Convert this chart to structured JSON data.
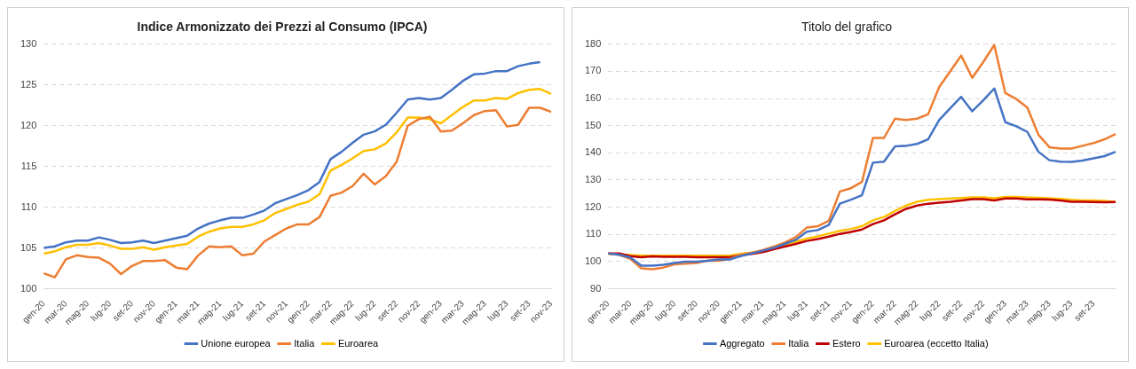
{
  "chart_data": [
    {
      "type": "line",
      "title": "Indice Armonizzato dei Prezzi al Consumo (IPCA)",
      "categories": [
        "gen-20",
        null,
        "mar-20",
        null,
        "mag-20",
        null,
        "lug-20",
        null,
        "set-20",
        null,
        "nov-20",
        null,
        "gen-21",
        null,
        "mar-21",
        null,
        "mag-21",
        null,
        "lug-21",
        null,
        "set-21",
        null,
        "nov-21",
        null,
        "gen-22",
        null,
        "mar-22",
        null,
        "mag-22",
        null,
        "lug-22",
        null,
        "set-22",
        null,
        "nov-22",
        null,
        "gen-23",
        null,
        "mar-23",
        null,
        "mag-23",
        null,
        "lug-23",
        null,
        "set-23",
        null,
        "nov-23"
      ],
      "series": [
        {
          "name": "Unione europea",
          "color": "#4472c4",
          "values": [
            105.0,
            105.2,
            105.7,
            105.9,
            105.9,
            106.3,
            106.0,
            105.6,
            105.7,
            105.9,
            105.6,
            105.9,
            106.2,
            106.5,
            107.4,
            108.0,
            108.4,
            108.7,
            108.7,
            109.1,
            109.6,
            110.5,
            111.0,
            111.5,
            112.1,
            113.1,
            115.9,
            116.8,
            117.9,
            118.9,
            119.3,
            120.1,
            121.6,
            123.2,
            123.4,
            123.2,
            123.4,
            124.4,
            125.5,
            126.3,
            126.4,
            126.7,
            126.7,
            127.3,
            127.6,
            127.8,
            null
          ]
        },
        {
          "name": "Italia",
          "color": "#ed7d31",
          "values": [
            101.9,
            101.4,
            103.6,
            104.1,
            103.9,
            103.8,
            103.1,
            101.8,
            102.8,
            103.4,
            103.4,
            103.5,
            102.6,
            102.4,
            104.1,
            105.2,
            105.1,
            105.2,
            104.1,
            104.3,
            105.8,
            106.6,
            107.4,
            107.9,
            107.9,
            108.8,
            111.4,
            111.8,
            112.6,
            114.1,
            112.8,
            113.8,
            115.6,
            120.0,
            120.8,
            121.1,
            119.3,
            119.4,
            120.3,
            121.3,
            121.8,
            121.9,
            119.9,
            120.1,
            122.2,
            122.2,
            121.7
          ]
        },
        {
          "name": "Euroarea",
          "color": "#ffc000",
          "values": [
            104.3,
            104.6,
            105.1,
            105.4,
            105.4,
            105.6,
            105.3,
            104.9,
            104.9,
            105.1,
            104.8,
            105.1,
            105.3,
            105.5,
            106.4,
            107.0,
            107.4,
            107.6,
            107.6,
            107.9,
            108.4,
            109.3,
            109.8,
            110.3,
            110.7,
            111.6,
            114.5,
            115.2,
            116.0,
            116.9,
            117.1,
            117.8,
            119.2,
            121.0,
            121.0,
            120.8,
            120.3,
            121.3,
            122.3,
            123.1,
            123.1,
            123.4,
            123.3,
            124.0,
            124.4,
            124.5,
            123.9
          ]
        }
      ],
      "ylim": [
        100,
        130
      ],
      "yticks": [
        100,
        105,
        110,
        115,
        120,
        125,
        130
      ],
      "grid": "y",
      "legend": "bottom"
    },
    {
      "type": "line",
      "title": "Titolo del grafico",
      "categories": [
        "gen-20",
        null,
        "mar-20",
        null,
        "mag-20",
        null,
        "lug-20",
        null,
        "set-20",
        null,
        "nov-20",
        null,
        "gen-21",
        null,
        "mar-21",
        null,
        "mag-21",
        null,
        "lug-21",
        null,
        "set-21",
        null,
        "nov-21",
        null,
        "gen-22",
        null,
        "mar-22",
        null,
        "mag-22",
        null,
        "lug-22",
        null,
        "set-22",
        null,
        "nov-22",
        null,
        "gen-23",
        null,
        "mar-23",
        null,
        "mag-23",
        null,
        "lug-23",
        null,
        "set-23",
        null,
        null
      ],
      "series": [
        {
          "name": "Aggregato",
          "color": "#4472c4",
          "values": [
            103.0,
            102.5,
            101.5,
            98.5,
            98.5,
            98.8,
            99.5,
            100.0,
            100.0,
            100.3,
            100.8,
            100.8,
            102.0,
            103.0,
            104.0,
            105.0,
            106.5,
            108.0,
            111.0,
            111.6,
            113.5,
            121.3,
            122.8,
            124.4,
            136.4,
            136.8,
            142.4,
            142.6,
            143.3,
            145.0,
            152.1,
            156.4,
            160.6,
            155.3,
            159.3,
            163.7,
            151.3,
            149.8,
            147.7,
            140.4,
            137.3,
            136.8,
            136.7,
            137.2,
            138.0,
            138.8,
            140.4
          ]
        },
        {
          "name": "Italia",
          "color": "#ed7d31",
          "values": [
            103.0,
            102.5,
            101.0,
            97.5,
            97.2,
            97.8,
            99.0,
            99.2,
            99.5,
            100.4,
            100.3,
            101.0,
            102.5,
            103.2,
            104.2,
            105.5,
            107.0,
            109.0,
            112.5,
            113.0,
            115.0,
            125.8,
            127.0,
            129.3,
            145.5,
            145.5,
            152.6,
            152.1,
            152.6,
            154.2,
            164.2,
            170.0,
            175.8,
            167.6,
            173.4,
            179.7,
            162.0,
            159.8,
            156.7,
            146.7,
            142.1,
            141.6,
            141.6,
            142.6,
            143.6,
            145.0,
            146.9
          ]
        },
        {
          "name": "Estero",
          "color": "#c00000",
          "values": [
            103.0,
            103.0,
            102.0,
            101.6,
            101.9,
            101.8,
            101.8,
            101.8,
            101.6,
            101.6,
            101.6,
            101.6,
            102.3,
            102.8,
            103.5,
            104.5,
            105.5,
            106.5,
            107.6,
            108.3,
            109.2,
            110.2,
            110.9,
            111.8,
            113.8,
            115.2,
            117.4,
            119.4,
            120.6,
            121.3,
            121.7,
            122.0,
            122.5,
            123.0,
            123.0,
            122.5,
            123.2,
            123.2,
            122.9,
            122.9,
            122.8,
            122.5,
            122.0,
            122.0,
            121.9,
            121.8,
            121.9
          ]
        },
        {
          "name": "Euroarea (eccetto Italia)",
          "color": "#ffc000",
          "values": [
            102.8,
            102.6,
            102.4,
            102.2,
            102.2,
            102.2,
            102.2,
            102.2,
            102.2,
            102.2,
            102.2,
            102.2,
            102.8,
            103.3,
            104.0,
            105.0,
            106.2,
            107.3,
            108.5,
            109.3,
            110.3,
            111.3,
            112.0,
            113.0,
            115.2,
            116.4,
            118.6,
            120.6,
            122.0,
            122.7,
            123.0,
            123.2,
            123.4,
            123.6,
            123.6,
            123.3,
            123.8,
            123.8,
            123.6,
            123.5,
            123.3,
            123.1,
            122.7,
            122.5,
            122.5,
            122.3,
            121.9
          ]
        }
      ],
      "ylim": [
        90,
        180
      ],
      "yticks": [
        90,
        100,
        110,
        120,
        130,
        140,
        150,
        160,
        170,
        180
      ],
      "grid": "y",
      "legend": "bottom"
    }
  ]
}
